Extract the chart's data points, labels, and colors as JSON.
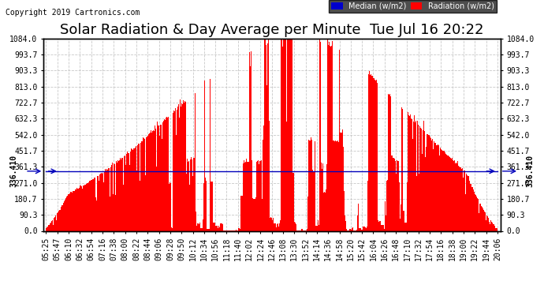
{
  "title": "Solar Radiation & Day Average per Minute  Tue Jul 16 20:22",
  "copyright": "Copyright 2019 Cartronics.com",
  "median_value": 336.41,
  "ymax": 1084.0,
  "yticks": [
    0.0,
    90.3,
    180.7,
    271.0,
    361.3,
    451.7,
    542.0,
    632.3,
    722.7,
    813.0,
    903.3,
    993.7,
    1084.0
  ],
  "ytick_labels": [
    "0.0",
    "90.3",
    "180.7",
    "271.0",
    "361.3",
    "451.7",
    "542.0",
    "632.3",
    "722.7",
    "813.0",
    "903.3",
    "993.7",
    "1084.0"
  ],
  "background_color": "#ffffff",
  "grid_color": "#bbbbbb",
  "bar_color": "#ff0000",
  "median_line_color": "#0000bb",
  "legend_median_bg": "#0000cc",
  "legend_radiation_bg": "#ff0000",
  "title_fontsize": 13,
  "tick_fontsize": 7,
  "copyright_fontsize": 7,
  "x_tick_labels": [
    "05:25",
    "05:47",
    "06:10",
    "06:32",
    "06:54",
    "07:16",
    "07:38",
    "08:00",
    "08:22",
    "08:44",
    "09:06",
    "09:28",
    "09:50",
    "10:12",
    "10:34",
    "10:56",
    "11:18",
    "11:40",
    "12:02",
    "12:24",
    "12:46",
    "13:08",
    "13:30",
    "13:52",
    "14:14",
    "14:36",
    "14:58",
    "15:20",
    "15:42",
    "16:04",
    "16:26",
    "16:48",
    "17:10",
    "17:32",
    "17:54",
    "18:16",
    "18:38",
    "19:00",
    "19:22",
    "19:44",
    "20:06"
  ],
  "num_points": 875,
  "seed": 7
}
